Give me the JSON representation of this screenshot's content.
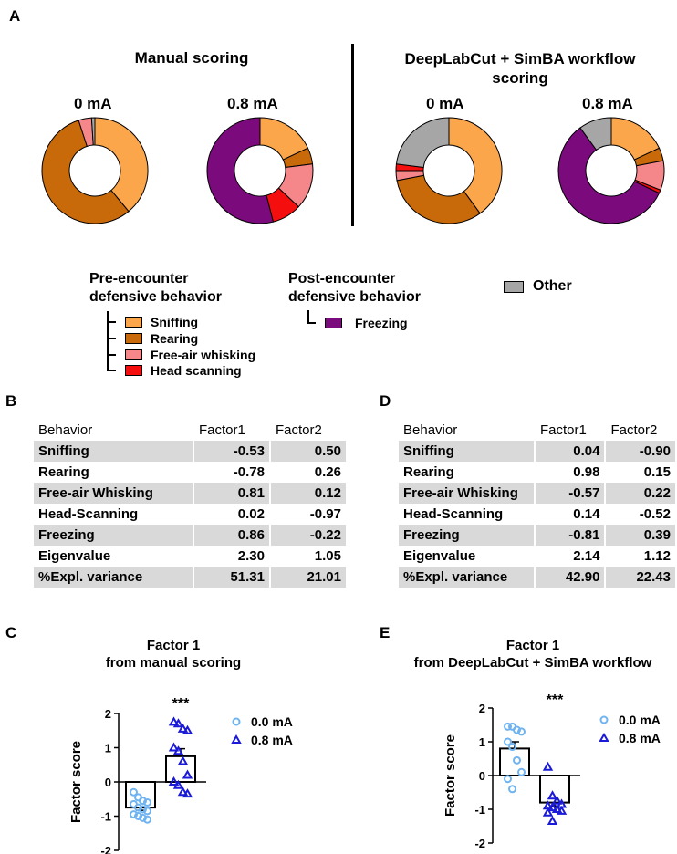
{
  "panel_labels": {
    "a": "A",
    "b": "B",
    "c": "C",
    "d": "D",
    "e": "E"
  },
  "panel_a": {
    "manual_title": "Manual scoring",
    "dlc_title_line1": "DeepLabCut + SimBA workflow",
    "dlc_title_line2": "scoring",
    "label_0": "0 mA",
    "label_08": "0.8 mA"
  },
  "colors": {
    "sniffing": "#FBA64B",
    "rearing": "#C8690A",
    "whisking": "#F5868A",
    "head_scanning": "#F40E0E",
    "freezing": "#7B0A7C",
    "other": "#A6A6A6",
    "point_00": "#6FB3F0",
    "point_08": "#1A1AD8"
  },
  "legend": {
    "pre_line1": "Pre-encounter",
    "pre_line2": "defensive behavior",
    "post_line1": "Post-encounter",
    "post_line2": "defensive behavior",
    "sniffing": "Sniffing",
    "rearing": "Rearing",
    "whisking": "Free-air whisking",
    "head_scanning": "Head scanning",
    "freezing": "Freezing",
    "other": "Other"
  },
  "table_b": {
    "header": [
      "Behavior",
      "Factor1",
      "Factor2"
    ],
    "rows": [
      [
        "Sniffing",
        "-0.53",
        "0.50"
      ],
      [
        "Rearing",
        "-0.78",
        "0.26"
      ],
      [
        "Free-air Whisking",
        "0.81",
        "0.12"
      ],
      [
        "Head-Scanning",
        "0.02",
        "-0.97"
      ],
      [
        "Freezing",
        "0.86",
        "-0.22"
      ],
      [
        "Eigenvalue",
        "2.30",
        "1.05"
      ],
      [
        "%Expl. variance",
        "51.31",
        "21.01"
      ]
    ]
  },
  "table_d": {
    "header": [
      "Behavior",
      "Factor1",
      "Factor2"
    ],
    "rows": [
      [
        "Sniffing",
        "0.04",
        "-0.90"
      ],
      [
        "Rearing",
        "0.98",
        "0.15"
      ],
      [
        "Free-air Whisking",
        "-0.57",
        "0.22"
      ],
      [
        "Head-Scanning",
        "0.14",
        "-0.52"
      ],
      [
        "Freezing",
        "-0.81",
        "0.39"
      ],
      [
        "Eigenvalue",
        "2.14",
        "1.12"
      ],
      [
        "%Expl. variance",
        "42.90",
        "22.43"
      ]
    ]
  },
  "chart_data": [
    {
      "type": "pie",
      "panel": "A",
      "title": "Manual scoring 0 mA",
      "labels": [
        "Sniffing",
        "Rearing",
        "Free-air whisking",
        "Head scanning",
        "Freezing",
        "Other"
      ],
      "values": [
        39,
        56,
        4,
        0,
        0,
        1
      ]
    },
    {
      "type": "pie",
      "panel": "A",
      "title": "Manual scoring 0.8 mA",
      "labels": [
        "Sniffing",
        "Rearing",
        "Free-air whisking",
        "Head scanning",
        "Freezing",
        "Other"
      ],
      "values": [
        18,
        5,
        14,
        9,
        54,
        0
      ]
    },
    {
      "type": "pie",
      "panel": "A",
      "title": "DeepLabCut + SimBA workflow scoring 0 mA",
      "labels": [
        "Sniffing",
        "Rearing",
        "Free-air whisking",
        "Head scanning",
        "Freezing",
        "Other"
      ],
      "values": [
        40,
        32,
        3,
        2,
        0,
        23
      ]
    },
    {
      "type": "pie",
      "panel": "A",
      "title": "DeepLabCut + SimBA workflow scoring 0.8 mA",
      "labels": [
        "Sniffing",
        "Rearing",
        "Free-air whisking",
        "Head scanning",
        "Freezing",
        "Other"
      ],
      "values": [
        18,
        4,
        9,
        1,
        58,
        10
      ]
    },
    {
      "type": "bar",
      "panel": "C",
      "title": "Factor 1",
      "subtitle": "from manual scoring",
      "ylabel": "Factor score",
      "ylim": [
        -2,
        2
      ],
      "yticks": [
        "-2",
        "-1",
        "0",
        "1",
        "2"
      ],
      "significance": "***",
      "series": [
        {
          "name": "0.0 mA",
          "mean": -0.75,
          "sem": 0.08,
          "points": [
            -0.3,
            -0.45,
            -0.55,
            -0.6,
            -0.65,
            -0.75,
            -0.8,
            -0.85,
            -0.95,
            -1.0,
            -1.05,
            -1.1
          ]
        },
        {
          "name": "0.8 mA",
          "mean": 0.75,
          "sem": 0.22,
          "points": [
            1.75,
            1.7,
            1.55,
            1.5,
            1.0,
            0.9,
            0.6,
            0.2,
            0.0,
            -0.1,
            -0.3,
            -0.35
          ]
        }
      ]
    },
    {
      "type": "bar",
      "panel": "E",
      "title": "Factor 1",
      "subtitle": "from DeepLabCut + SimBA workflow",
      "ylabel": "Factor score",
      "ylim": [
        -2,
        2
      ],
      "yticks": [
        "-2",
        "-1",
        "0",
        "1",
        "2"
      ],
      "significance": "***",
      "series": [
        {
          "name": "0.0 mA",
          "mean": 0.8,
          "sem": 0.2,
          "points": [
            1.45,
            1.45,
            1.35,
            1.3,
            1.0,
            0.85,
            0.45,
            0.1,
            -0.1,
            -0.4
          ]
        },
        {
          "name": "0.8 mA",
          "mean": -0.8,
          "sem": 0.1,
          "points": [
            0.25,
            -0.6,
            -0.75,
            -0.85,
            -0.9,
            -0.95,
            -1.0,
            -1.05,
            -1.1,
            -1.35
          ]
        }
      ]
    }
  ]
}
